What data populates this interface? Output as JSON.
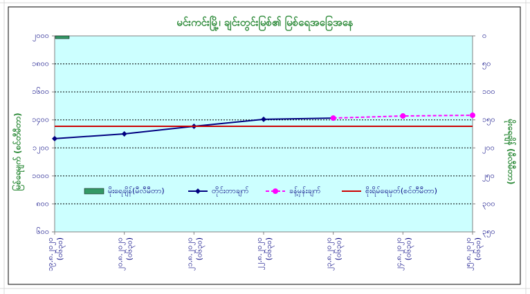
{
  "chart_data": {
    "type": "combo",
    "title": "မင်းကင်းမြို့၊ ချင်းတွင်းမြစ်၏ မြစ်ရေအခြေအနေ",
    "ylabel": "မြစ်ရေမျက် (စင်တီမီတာ)",
    "y2label": "မိုးရေချိန် (မီလီမီတာ)",
    "categories": [
      [
        "၁၉.၈.၂၀၂၀",
        "(၀၆၃၀)"
      ],
      [
        "၂၀.၈.၂၀၂၀",
        "(၀၆၃၀)"
      ],
      [
        "၂၁.၈.၂၀၂၀",
        "(၀၆၃၀)"
      ],
      [
        "၂၂.၈.၂၀၂၀",
        "(၀၆၃၀)"
      ],
      [
        "၂၃.၈.၂၀၂၀",
        "(၀၆၃၀)"
      ],
      [
        "၂၄.၈.၂၀၂၀",
        "(၀၆၃၀)"
      ],
      [
        "၂၅.၈.၂၀၂၀",
        "(၀၆၃၀)"
      ]
    ],
    "ylim": [
      600,
      2000
    ],
    "yticks": [
      {
        "value": 2000,
        "label": "၂၀၀၀"
      },
      {
        "value": 1800,
        "label": "၁၈၀၀"
      },
      {
        "value": 1600,
        "label": "၁၆၀၀"
      },
      {
        "value": 1400,
        "label": "၁၄၀၀"
      },
      {
        "value": 1200,
        "label": "၁၂၀၀"
      },
      {
        "value": 1000,
        "label": "၁၀၀၀"
      },
      {
        "value": 800,
        "label": "၈၀၀"
      },
      {
        "value": 600,
        "label": "၆၀၀"
      }
    ],
    "y2lim": [
      0,
      350
    ],
    "y2_reversed": true,
    "y2ticks": [
      {
        "value": 0,
        "label": "၀"
      },
      {
        "value": 50,
        "label": "၅၀"
      },
      {
        "value": 100,
        "label": "၁၀၀"
      },
      {
        "value": 150,
        "label": "၁၅၀"
      },
      {
        "value": 200,
        "label": "၂၀၀"
      },
      {
        "value": 250,
        "label": "၂၅၀"
      },
      {
        "value": 300,
        "label": "၃၀၀"
      },
      {
        "value": 350,
        "label": "၃၅၀"
      }
    ],
    "grid": true,
    "series": [
      {
        "name": "မိုးရေချိန်(မီလီမီတာ)",
        "type": "bar",
        "axis": "y2",
        "color": "#339966",
        "values": [
          5,
          0,
          0,
          0,
          0,
          0,
          0
        ]
      },
      {
        "name": "တိုင်းတာချက်",
        "type": "line",
        "color": "#000080",
        "marker": "diamond",
        "values": [
          1266,
          1300,
          1354,
          1404,
          1413,
          null,
          null
        ]
      },
      {
        "name": "ခန့်မှန်းချက်",
        "type": "line",
        "color": "#ff00ff",
        "marker": "circle",
        "dashed": true,
        "values": [
          null,
          null,
          null,
          null,
          1413,
          1428,
          1433
        ]
      },
      {
        "name": "စိုးရိမ်ရေမှတ်(စင်တီမီတာ)",
        "type": "line",
        "color": "#cc0000",
        "values": [
          1354,
          1354,
          1354,
          1354,
          1354,
          1354,
          1354
        ]
      }
    ]
  }
}
